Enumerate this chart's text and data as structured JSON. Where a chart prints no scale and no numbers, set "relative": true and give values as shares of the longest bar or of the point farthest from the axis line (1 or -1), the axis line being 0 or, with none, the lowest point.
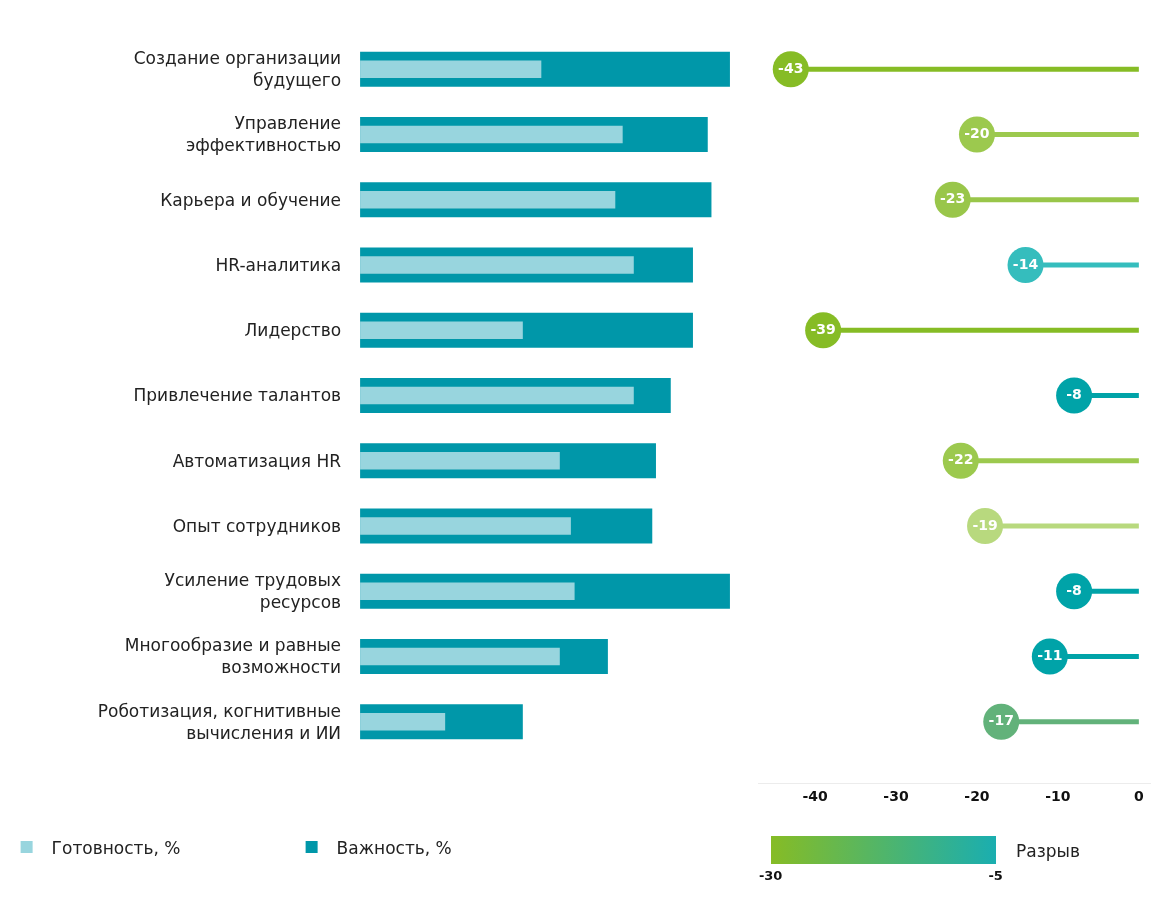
{
  "chart_data": [
    {
      "type": "bar",
      "orientation": "horizontal",
      "relative": true,
      "categories": [
        "Создание организации будущего",
        "Управление эффективностью",
        "Карьера и обучение",
        "HR-аналитика",
        "Лидерство",
        "Привлечение талантов",
        "Автоматизация HR",
        "Опыт сотрудников",
        "Усиление трудовых ресурсов",
        "Многообразие и равные возможности",
        "Роботизация, когнитивные вычисления и ИИ"
      ],
      "series": [
        {
          "name": "Готовность, %",
          "color": "#98d5de",
          "values": [
            0.49,
            0.71,
            0.69,
            0.74,
            0.44,
            0.74,
            0.54,
            0.57,
            0.58,
            0.54,
            0.23
          ]
        },
        {
          "name": "Важность, %",
          "color": "#0097a9",
          "values": [
            1.0,
            0.94,
            0.95,
            0.9,
            0.9,
            0.84,
            0.8,
            0.79,
            1.0,
            0.67,
            0.44
          ]
        }
      ],
      "legend": "bottom left"
    },
    {
      "type": "lollipop",
      "orientation": "horizontal",
      "categories": [
        "Создание организации будущего",
        "Управление эффективностью",
        "Карьера и обучение",
        "HR-аналитика",
        "Лидерство",
        "Привлечение талантов",
        "Автоматизация HR",
        "Опыт сотрудников",
        "Усиление трудовых ресурсов",
        "Многообразие и равные возможности",
        "Роботизация, когнитивные вычисления и ИИ"
      ],
      "values": [
        -43,
        -20,
        -23,
        -14,
        -39,
        -8,
        -22,
        -19,
        -8,
        -11,
        -17
      ],
      "colors": [
        "#86bc25",
        "#9cc94e",
        "#99c64a",
        "#35bdbd",
        "#86bc25",
        "#00a3a8",
        "#9cc94e",
        "#b8d97e",
        "#00a3a8",
        "#00a3a8",
        "#62b27a"
      ],
      "data_labels": true,
      "xlim": [
        -47,
        1.5
      ],
      "xticks": [
        -40,
        -30,
        -20,
        -10,
        0
      ],
      "tick_labels": "x",
      "clabel": "Разрыв",
      "clim": [
        -30,
        -5
      ],
      "cticks": [
        -30,
        -5
      ]
    }
  ]
}
